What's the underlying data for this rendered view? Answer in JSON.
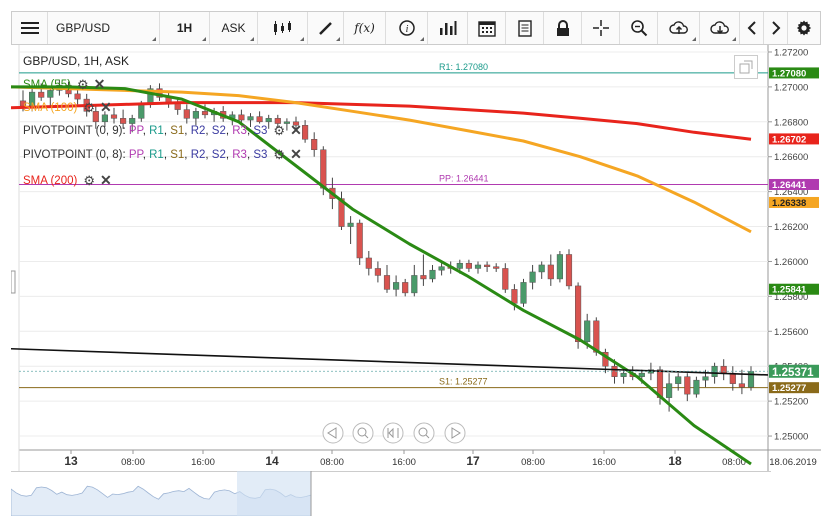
{
  "toolbar": {
    "symbol": "GBP/USD",
    "timeframe": "1H",
    "price_type": "ASK",
    "fx_label": "f(x)"
  },
  "chart_title": "GBP/USD, 1H, ASK",
  "indicators": [
    {
      "name": "SMA (55)",
      "color": "#2a8a14"
    },
    {
      "name": "SMA (100)",
      "color": "#f5a623"
    },
    {
      "name": "PIVOTPOINT (0, 9)",
      "color": "#222222"
    },
    {
      "name": "PIVOTPOINT (0, 8)",
      "color": "#222222"
    },
    {
      "name": "SMA (200)",
      "color": "#e8241c"
    }
  ],
  "pivot_parts": [
    {
      "text": ": ",
      "color": "#222222"
    },
    {
      "text": "PP",
      "color": "#b03ab0"
    },
    {
      "text": ", ",
      "color": "#222222"
    },
    {
      "text": "R1",
      "color": "#1a9a8a"
    },
    {
      "text": ", ",
      "color": "#222222"
    },
    {
      "text": "S1",
      "color": "#8a6a1a"
    },
    {
      "text": ", ",
      "color": "#222222"
    },
    {
      "text": "R2",
      "color": "#3a3aa0"
    },
    {
      "text": ", ",
      "color": "#222222"
    },
    {
      "text": "S2",
      "color": "#3a3aa0"
    },
    {
      "text": ", ",
      "color": "#222222"
    },
    {
      "text": "R3",
      "color": "#b03ab0"
    },
    {
      "text": ", ",
      "color": "#222222"
    },
    {
      "text": "S3",
      "color": "#3a3aa0"
    }
  ],
  "levels": [
    {
      "label": "R1: 1.27080",
      "value": 1.2708,
      "tag": "1.27080",
      "color": "#1a9a8a"
    },
    {
      "label": "PP: 1.26441",
      "value": 1.26441,
      "tag": "1.26441",
      "color": "#b03ab0"
    },
    {
      "label": "S1: 1.25277",
      "value": 1.25277,
      "tag": "1.25277",
      "color": "#8a6a1a"
    }
  ],
  "price_tags": [
    {
      "value": 1.26702,
      "text": "1.26702",
      "bg": "#e8241c",
      "fg": "#ffffff"
    },
    {
      "value": 1.26338,
      "text": "1.26338",
      "bg": "#f5a623",
      "fg": "#222222"
    },
    {
      "value": 1.25841,
      "text": "1.25841",
      "bg": "#2a8a14",
      "fg": "#ffffff"
    },
    {
      "value": 1.25371,
      "text": "1.25371",
      "bg": "#3a9a5a",
      "fg": "#ffffff"
    }
  ],
  "y_axis": {
    "ticks": [
      "1.27200",
      "1.27000",
      "1.26800",
      "1.26600",
      "1.26400",
      "1.26200",
      "1.26000",
      "1.25800",
      "1.25600",
      "1.25400",
      "1.25200",
      "1.25000"
    ],
    "min": 1.2492,
    "max": 1.2724
  },
  "x_axis": {
    "labels": [
      {
        "text": "13",
        "bold": true,
        "x": 54
      },
      {
        "text": "08:00",
        "bold": false,
        "x": 116
      },
      {
        "text": "16:00",
        "bold": false,
        "x": 186
      },
      {
        "text": "14",
        "bold": true,
        "x": 255
      },
      {
        "text": "08:00",
        "bold": false,
        "x": 315
      },
      {
        "text": "16:00",
        "bold": false,
        "x": 387
      },
      {
        "text": "17",
        "bold": true,
        "x": 456
      },
      {
        "text": "08:00",
        "bold": false,
        "x": 516
      },
      {
        "text": "16:00",
        "bold": false,
        "x": 587
      },
      {
        "text": "18",
        "bold": true,
        "x": 658
      },
      {
        "text": "08:00",
        "bold": false,
        "x": 717
      }
    ],
    "date": "18.06.2019"
  },
  "colors": {
    "bull": "#4a9a6a",
    "bear": "#d9534f",
    "sma55": "#2a8a14",
    "sma100": "#f5a623",
    "sma200": "#e8241c",
    "trend": "#111111",
    "grid": "#ececec"
  },
  "chart_data": {
    "type": "candlestick",
    "title": "GBP/USD, 1H, ASK",
    "ylim": [
      1.2492,
      1.2724
    ],
    "candles": [
      [
        1.2692,
        1.2698,
        1.2686,
        1.2689
      ],
      [
        1.2689,
        1.27,
        1.2686,
        1.2697
      ],
      [
        1.2697,
        1.2702,
        1.2692,
        1.2694
      ],
      [
        1.2694,
        1.27,
        1.2688,
        1.2698
      ],
      [
        1.2698,
        1.2704,
        1.2695,
        1.2701
      ],
      [
        1.2701,
        1.2703,
        1.2694,
        1.2696
      ],
      [
        1.2696,
        1.2699,
        1.269,
        1.2693
      ],
      [
        1.2693,
        1.2696,
        1.2683,
        1.2686
      ],
      [
        1.2686,
        1.269,
        1.2676,
        1.268
      ],
      [
        1.268,
        1.2686,
        1.2677,
        1.2684
      ],
      [
        1.2684,
        1.2688,
        1.2679,
        1.2682
      ],
      [
        1.2682,
        1.2687,
        1.2676,
        1.2679
      ],
      [
        1.2679,
        1.2684,
        1.2674,
        1.2682
      ],
      [
        1.2682,
        1.2692,
        1.268,
        1.269
      ],
      [
        1.269,
        1.2701,
        1.2688,
        1.2699
      ],
      [
        1.2699,
        1.2702,
        1.2692,
        1.2694
      ],
      [
        1.2694,
        1.2697,
        1.2688,
        1.2691
      ],
      [
        1.2691,
        1.2693,
        1.2684,
        1.2687
      ],
      [
        1.2687,
        1.269,
        1.2679,
        1.2682
      ],
      [
        1.2682,
        1.2688,
        1.2678,
        1.2686
      ],
      [
        1.2686,
        1.269,
        1.2682,
        1.2684
      ],
      [
        1.2684,
        1.2688,
        1.268,
        1.2686
      ],
      [
        1.2686,
        1.2689,
        1.268,
        1.2682
      ],
      [
        1.2682,
        1.2686,
        1.2678,
        1.2684
      ],
      [
        1.2684,
        1.2687,
        1.2679,
        1.2681
      ],
      [
        1.2681,
        1.2685,
        1.2677,
        1.2683
      ],
      [
        1.2683,
        1.2686,
        1.2679,
        1.268
      ],
      [
        1.268,
        1.2684,
        1.2676,
        1.2682
      ],
      [
        1.2682,
        1.2684,
        1.2677,
        1.2679
      ],
      [
        1.2679,
        1.2682,
        1.2675,
        1.268
      ],
      [
        1.268,
        1.2683,
        1.2676,
        1.2678
      ],
      [
        1.2678,
        1.2681,
        1.2668,
        1.267
      ],
      [
        1.267,
        1.2674,
        1.266,
        1.2664
      ],
      [
        1.2664,
        1.2666,
        1.2638,
        1.2642
      ],
      [
        1.2642,
        1.2648,
        1.263,
        1.2636
      ],
      [
        1.2636,
        1.264,
        1.2618,
        1.262
      ],
      [
        1.262,
        1.2626,
        1.261,
        1.2622
      ],
      [
        1.2622,
        1.2624,
        1.2598,
        1.2602
      ],
      [
        1.2602,
        1.2606,
        1.2592,
        1.2596
      ],
      [
        1.2596,
        1.26,
        1.2588,
        1.2592
      ],
      [
        1.2592,
        1.2598,
        1.2582,
        1.2584
      ],
      [
        1.2584,
        1.2592,
        1.258,
        1.2588
      ],
      [
        1.2588,
        1.259,
        1.258,
        1.2582
      ],
      [
        1.2582,
        1.2598,
        1.258,
        1.2592
      ],
      [
        1.2592,
        1.2604,
        1.2586,
        1.259
      ],
      [
        1.259,
        1.2598,
        1.2588,
        1.2595
      ],
      [
        1.2595,
        1.26,
        1.2592,
        1.2597
      ],
      [
        1.2597,
        1.26,
        1.2593,
        1.2596
      ],
      [
        1.2596,
        1.2601,
        1.2593,
        1.2599
      ],
      [
        1.2599,
        1.2601,
        1.2594,
        1.2596
      ],
      [
        1.2596,
        1.26,
        1.2593,
        1.2598
      ],
      [
        1.2598,
        1.26,
        1.2594,
        1.2597
      ],
      [
        1.2597,
        1.2599,
        1.2594,
        1.2596
      ],
      [
        1.2596,
        1.2599,
        1.2582,
        1.2584
      ],
      [
        1.2584,
        1.2587,
        1.2572,
        1.2576
      ],
      [
        1.2576,
        1.259,
        1.2574,
        1.2588
      ],
      [
        1.2588,
        1.2598,
        1.2584,
        1.2594
      ],
      [
        1.2594,
        1.26,
        1.259,
        1.2598
      ],
      [
        1.2598,
        1.2604,
        1.2586,
        1.259
      ],
      [
        1.259,
        1.2606,
        1.2588,
        1.2604
      ],
      [
        1.2604,
        1.2607,
        1.2584,
        1.2586
      ],
      [
        1.2586,
        1.2588,
        1.255,
        1.2554
      ],
      [
        1.2554,
        1.257,
        1.255,
        1.2566
      ],
      [
        1.2566,
        1.2568,
        1.2546,
        1.2548
      ],
      [
        1.2548,
        1.255,
        1.2536,
        1.254
      ],
      [
        1.254,
        1.2544,
        1.253,
        1.2534
      ],
      [
        1.2534,
        1.2538,
        1.253,
        1.2536
      ],
      [
        1.2536,
        1.254,
        1.2532,
        1.2534
      ],
      [
        1.2534,
        1.2538,
        1.253,
        1.2536
      ],
      [
        1.2536,
        1.2542,
        1.2532,
        1.2538
      ],
      [
        1.2538,
        1.254,
        1.2518,
        1.2522
      ],
      [
        1.2522,
        1.2536,
        1.2514,
        1.253
      ],
      [
        1.253,
        1.2536,
        1.2526,
        1.2534
      ],
      [
        1.2534,
        1.2536,
        1.252,
        1.2524
      ],
      [
        1.2524,
        1.2534,
        1.2522,
        1.2532
      ],
      [
        1.2532,
        1.2538,
        1.2528,
        1.2534
      ],
      [
        1.2534,
        1.2542,
        1.253,
        1.254
      ],
      [
        1.254,
        1.2544,
        1.2532,
        1.2536
      ],
      [
        1.2536,
        1.254,
        1.2526,
        1.253
      ],
      [
        1.253,
        1.2538,
        1.2524,
        1.2528
      ],
      [
        1.2528,
        1.254,
        1.2526,
        1.2537
      ]
    ],
    "sma55": [
      1.27,
      1.27,
      1.2699,
      1.2693,
      1.268,
      1.2655,
      1.263,
      1.261,
      1.2592,
      1.2572,
      1.2555,
      1.2534,
      1.2506,
      1.2484
    ],
    "sma100": [
      1.27,
      1.2699,
      1.2698,
      1.2697,
      1.2695,
      1.2691,
      1.2686,
      1.2681,
      1.2675,
      1.2669,
      1.266,
      1.2649,
      1.2634,
      1.2617
    ],
    "sma200": [
      1.2688,
      1.2689,
      1.269,
      1.2691,
      1.2691,
      1.2691,
      1.269,
      1.2689,
      1.2687,
      1.2685,
      1.2682,
      1.2679,
      1.2674,
      1.267
    ],
    "trendline": [
      1.255,
      1.2535
    ]
  },
  "navigator": {
    "controls": [
      "zoom-previous",
      "zoom-out",
      "zoom-fit",
      "zoom-in",
      "zoom-next"
    ]
  }
}
